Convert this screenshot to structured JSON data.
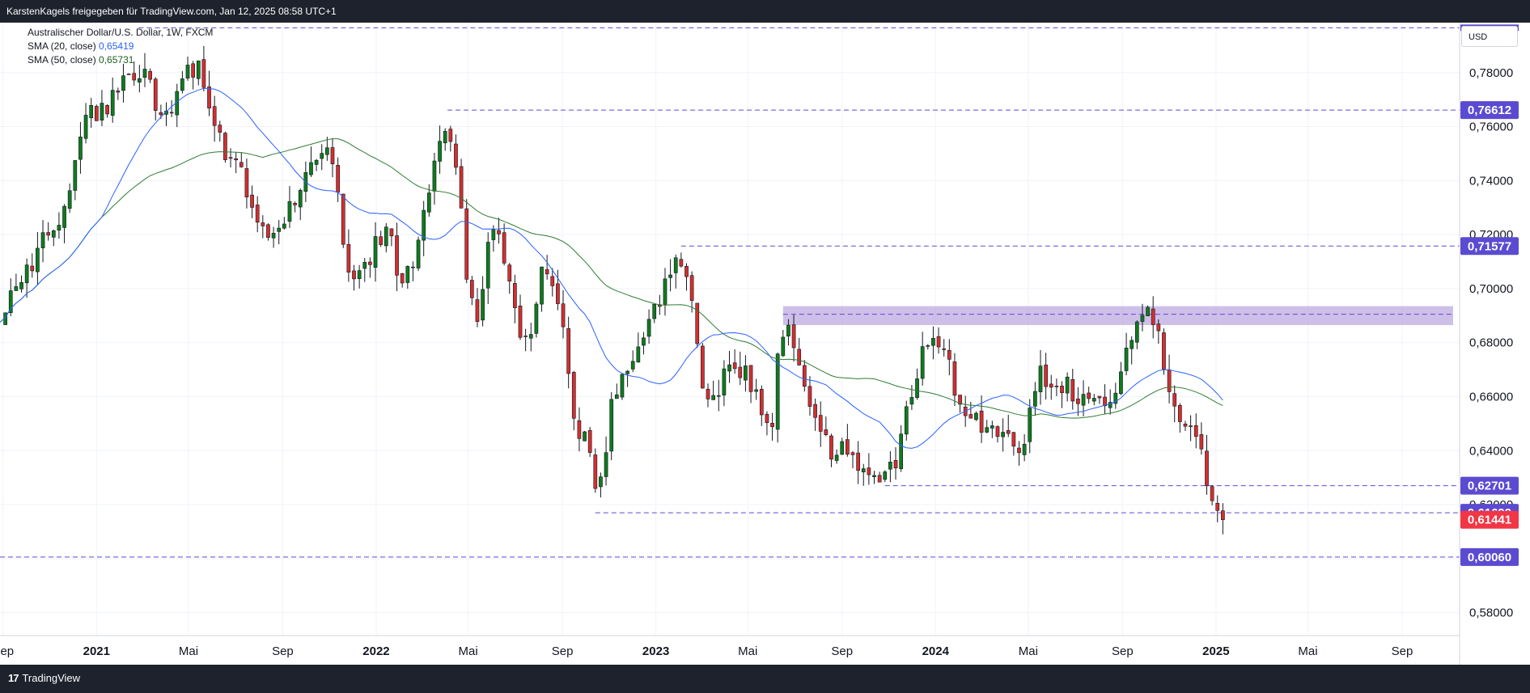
{
  "header": {
    "attribution": "KarstenKagels freigegeben für TradingView.com, Jan 12, 2025 08:58 UTC+1"
  },
  "legend": {
    "symbol": "Australischer Dollar/U.S. Dollar, 1W, FXCM",
    "sma20_label": "SMA (20, close)",
    "sma20_value": "0,65419",
    "sma50_label": "SMA (50, close)",
    "sma50_value": "0,65731"
  },
  "currency_label": "USD",
  "footer": {
    "brand": "TradingView"
  },
  "colors": {
    "up": "#22ab94",
    "up_body": "#0e7c1c",
    "down": "#d32f2f",
    "sma20": "#2962ff",
    "sma50": "#2e7d32",
    "level": "#5b4bd1",
    "zone": "#b39ddb",
    "price": "#f23645"
  },
  "chart_data": {
    "type": "candlestick",
    "title": "Australischer Dollar/U.S. Dollar, 1W, FXCM",
    "interval": "1W",
    "x_ticks": [
      {
        "label": "Sep",
        "date": "2020-09-01",
        "year": false
      },
      {
        "label": "2021",
        "date": "2021-01-01",
        "year": true
      },
      {
        "label": "Mai",
        "date": "2021-05-01",
        "year": false
      },
      {
        "label": "Sep",
        "date": "2021-09-01",
        "year": false
      },
      {
        "label": "2022",
        "date": "2022-01-01",
        "year": true
      },
      {
        "label": "Mai",
        "date": "2022-05-01",
        "year": false
      },
      {
        "label": "Sep",
        "date": "2022-09-01",
        "year": false
      },
      {
        "label": "2023",
        "date": "2023-01-01",
        "year": true
      },
      {
        "label": "Mai",
        "date": "2023-05-01",
        "year": false
      },
      {
        "label": "Sep",
        "date": "2023-09-01",
        "year": false
      },
      {
        "label": "2024",
        "date": "2024-01-01",
        "year": true
      },
      {
        "label": "Mai",
        "date": "2024-05-01",
        "year": false
      },
      {
        "label": "Sep",
        "date": "2024-09-01",
        "year": false
      },
      {
        "label": "2025",
        "date": "2025-01-01",
        "year": true
      },
      {
        "label": "Mai",
        "date": "2025-05-01",
        "year": false
      },
      {
        "label": "Sep",
        "date": "2025-09-01",
        "year": false
      }
    ],
    "x_range": [
      "2020-08-28",
      "2025-11-15"
    ],
    "ylim": [
      0.5715,
      0.7985
    ],
    "y_ticks": [
      "0,58000",
      "0,60000",
      "0,62000",
      "0,64000",
      "0,66000",
      "0,68000",
      "0,70000",
      "0,72000",
      "0,74000",
      "0,76000",
      "0,78000"
    ],
    "y_tick_values": [
      0.58,
      0.6,
      0.62,
      0.64,
      0.66,
      0.68,
      0.7,
      0.72,
      0.74,
      0.76,
      0.78
    ],
    "anchors": [
      {
        "date": "2020-08-28",
        "close": 0.69
      },
      {
        "date": "2020-09-25",
        "close": 0.706
      },
      {
        "date": "2020-11-06",
        "close": 0.721
      },
      {
        "date": "2020-12-31",
        "close": 0.766
      },
      {
        "date": "2021-02-25",
        "close": 0.781
      },
      {
        "date": "2021-03-31",
        "close": 0.762
      },
      {
        "date": "2021-05-10",
        "close": 0.783
      },
      {
        "date": "2021-06-20",
        "close": 0.75
      },
      {
        "date": "2021-08-20",
        "close": 0.718
      },
      {
        "date": "2021-09-15",
        "close": 0.733
      },
      {
        "date": "2021-10-28",
        "close": 0.752
      },
      {
        "date": "2021-12-03",
        "close": 0.705
      },
      {
        "date": "2022-01-15",
        "close": 0.722
      },
      {
        "date": "2022-02-05",
        "close": 0.703
      },
      {
        "date": "2022-04-04",
        "close": 0.756
      },
      {
        "date": "2022-05-12",
        "close": 0.69
      },
      {
        "date": "2022-06-03",
        "close": 0.722
      },
      {
        "date": "2022-07-15",
        "close": 0.678
      },
      {
        "date": "2022-08-12",
        "close": 0.708
      },
      {
        "date": "2022-09-30",
        "close": 0.643
      },
      {
        "date": "2022-10-14",
        "close": 0.627
      },
      {
        "date": "2022-11-18",
        "close": 0.669
      },
      {
        "date": "2023-02-03",
        "close": 0.709
      },
      {
        "date": "2023-03-10",
        "close": 0.66
      },
      {
        "date": "2023-04-14",
        "close": 0.672
      },
      {
        "date": "2023-05-31",
        "close": 0.651
      },
      {
        "date": "2023-06-16",
        "close": 0.686
      },
      {
        "date": "2023-08-18",
        "close": 0.64
      },
      {
        "date": "2023-10-27",
        "close": 0.631
      },
      {
        "date": "2023-12-29",
        "close": 0.682
      },
      {
        "date": "2024-02-15",
        "close": 0.652
      },
      {
        "date": "2024-04-19",
        "close": 0.642
      },
      {
        "date": "2024-05-17",
        "close": 0.668
      },
      {
        "date": "2024-08-05",
        "close": 0.657
      },
      {
        "date": "2024-09-30",
        "close": 0.69
      },
      {
        "date": "2024-11-25",
        "close": 0.651
      },
      {
        "date": "2025-01-10",
        "close": 0.6144
      }
    ],
    "horizontal_levels": [
      {
        "value": 0.7966,
        "label": "",
        "start": "2021-02-25"
      },
      {
        "value": 0.76612,
        "label": "0,76612",
        "start": "2022-04-04"
      },
      {
        "value": 0.71577,
        "label": "0,71577",
        "start": "2023-02-03"
      },
      {
        "value": 0.62701,
        "label": "0,62701",
        "start": "2023-10-27"
      },
      {
        "value": 0.61699,
        "label": "0,61699",
        "start": "2022-10-14"
      },
      {
        "value": 0.6006,
        "label": "0,60060",
        "start": "2020-08-28"
      }
    ],
    "resistance_zone": {
      "low": 0.6865,
      "high": 0.6935,
      "start": "2023-06-16",
      "midline": 0.6905
    },
    "last_price": {
      "value": 0.61441,
      "label": "0,61441"
    },
    "series": [
      {
        "name": "SMA (20, close)",
        "period": 20,
        "last": 0.65419
      },
      {
        "name": "SMA (50, close)",
        "period": 50,
        "last": 0.65731
      }
    ]
  }
}
